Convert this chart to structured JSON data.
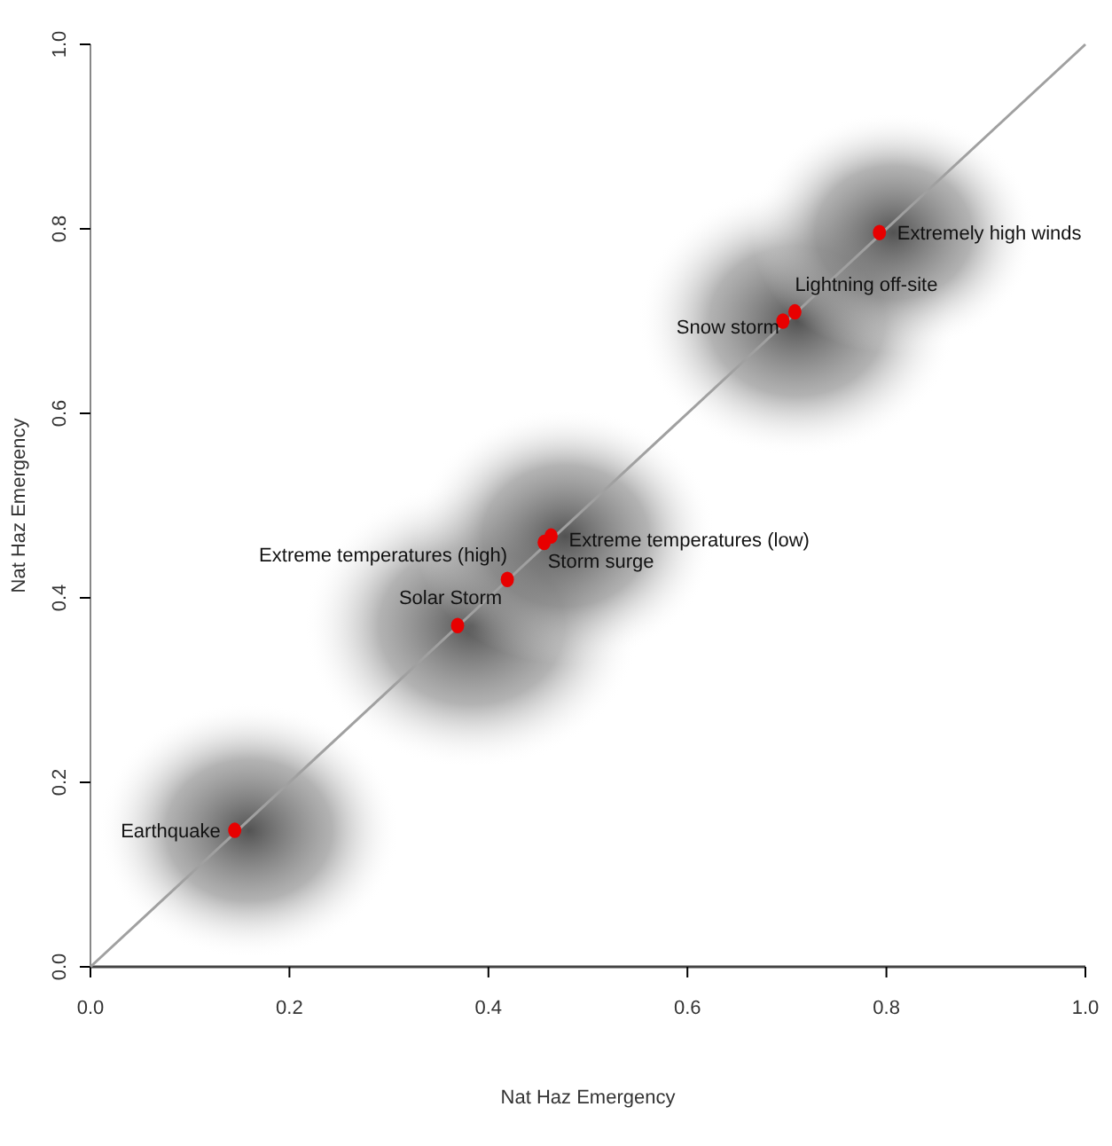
{
  "chart_data": {
    "type": "scatter",
    "xlabel": "Nat Haz Emergency",
    "ylabel": "Nat Haz Emergency",
    "xlim": [
      0,
      1
    ],
    "ylim": [
      0,
      1
    ],
    "xticks": [
      {
        "value": 0,
        "label": "0.0"
      },
      {
        "value": 0.2,
        "label": "0.2"
      },
      {
        "value": 0.4,
        "label": "0.4"
      },
      {
        "value": 0.6,
        "label": "0.6"
      },
      {
        "value": 0.8,
        "label": "0.8"
      },
      {
        "value": 1,
        "label": "1.0"
      }
    ],
    "yticks": [
      {
        "value": 0,
        "label": "0.0"
      },
      {
        "value": 0.2,
        "label": "0.2"
      },
      {
        "value": 0.4,
        "label": "0.4"
      },
      {
        "value": 0.6,
        "label": "0.6"
      },
      {
        "value": 0.8,
        "label": "0.8"
      },
      {
        "value": 1,
        "label": "1.0"
      }
    ],
    "series": [
      {
        "type": "line",
        "color": "#a0a0a0",
        "x": [
          0,
          1
        ],
        "values": [
          0,
          1
        ]
      },
      {
        "marker": "circle",
        "color": "#e80000",
        "x": [
          0.145,
          0.369,
          0.419,
          0.456,
          0.463,
          0.696,
          0.708,
          0.793
        ],
        "values": [
          0.148,
          0.37,
          0.42,
          0.46,
          0.467,
          0.7,
          0.71,
          0.796
        ]
      }
    ],
    "annotations": [
      {
        "text": "Earthquake",
        "x": 0.145,
        "y": 0.148
      },
      {
        "text": "Solar Storm",
        "x": 0.369,
        "y": 0.37
      },
      {
        "text": "Extreme temperatures (high)",
        "x": 0.419,
        "y": 0.42
      },
      {
        "text": "Storm surge",
        "x": 0.456,
        "y": 0.46
      },
      {
        "text": "Extreme temperatures (low)",
        "x": 0.463,
        "y": 0.467
      },
      {
        "text": "Snow storm",
        "x": 0.696,
        "y": 0.7
      },
      {
        "text": "Lightning off-site",
        "x": 0.708,
        "y": 0.71
      },
      {
        "text": "Extremely high winds",
        "x": 0.793,
        "y": 0.796
      }
    ]
  }
}
